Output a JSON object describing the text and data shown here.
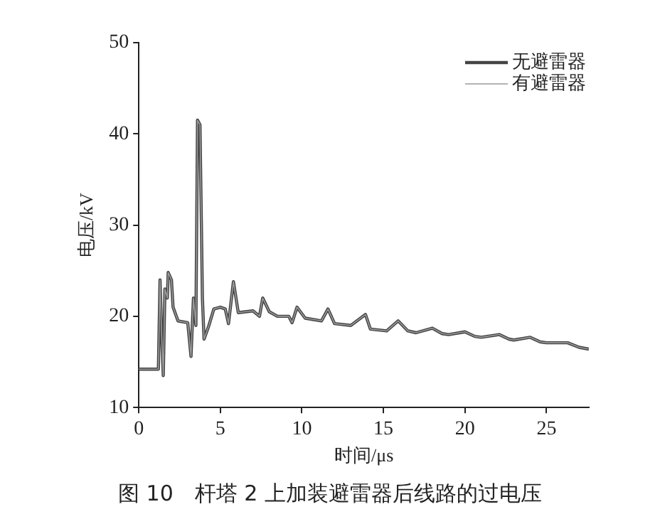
{
  "chart_data": {
    "type": "line",
    "title": "图 10　杆塔 2 上加装避雷器后线路的过电压",
    "xlabel": "时间/μs",
    "ylabel": "电压/kV",
    "x": [
      0,
      1.2,
      1.3,
      1.4,
      1.5,
      1.6,
      1.75,
      1.8,
      2.0,
      2.1,
      2.4,
      3.0,
      3.2,
      3.35,
      3.5,
      3.6,
      3.75,
      3.9,
      4.0,
      4.3,
      4.6,
      5.0,
      5.3,
      5.5,
      5.8,
      6.1,
      7.0,
      7.4,
      7.6,
      8.0,
      8.5,
      9.2,
      9.4,
      9.7,
      10.2,
      11.2,
      11.6,
      12.0,
      13.0,
      13.9,
      14.2,
      15.2,
      15.9,
      16.5,
      17.0,
      18.0,
      18.6,
      19.0,
      20.0,
      20.6,
      21.0,
      22.1,
      22.7,
      23.0,
      24.0,
      24.6,
      25.0,
      26.3,
      27.0,
      27.6
    ],
    "series": [
      {
        "name": "无避雷器",
        "color": "#444444",
        "values": [
          14.2,
          14.2,
          24,
          18,
          13.5,
          23,
          22,
          24.8,
          24,
          21,
          19.5,
          19.3,
          15.6,
          22,
          19,
          41.5,
          41,
          22,
          17.5,
          19,
          20.8,
          21,
          20.8,
          19.2,
          23.8,
          20.4,
          20.6,
          20,
          22,
          20.5,
          20,
          20,
          19.3,
          21,
          19.8,
          19.5,
          20.8,
          19.2,
          19,
          20.2,
          18.6,
          18.4,
          19.5,
          18.4,
          18.2,
          18.7,
          18.1,
          18,
          18.3,
          17.8,
          17.7,
          18,
          17.5,
          17.4,
          17.7,
          17.2,
          17.1,
          17.1,
          16.6,
          16.4
        ]
      },
      {
        "name": "有避雷器",
        "color": "#9a9a9a",
        "values": [
          14.2,
          14.2,
          24,
          18,
          13.5,
          23,
          22,
          24.8,
          24,
          21,
          19.5,
          19.3,
          15.6,
          22,
          19,
          41.5,
          41,
          22,
          17.5,
          19,
          20.8,
          21,
          20.8,
          19.2,
          23.8,
          20.4,
          20.6,
          20,
          22,
          20.5,
          20,
          20,
          19.3,
          21,
          19.8,
          19.5,
          20.8,
          19.2,
          19,
          20.2,
          18.6,
          18.4,
          19.5,
          18.4,
          18.2,
          18.7,
          18.1,
          18,
          18.3,
          17.8,
          17.7,
          18,
          17.5,
          17.4,
          17.7,
          17.2,
          17.1,
          17.1,
          16.6,
          16.4
        ]
      }
    ],
    "xlim": [
      0,
      27.6
    ],
    "xticks": [
      0,
      5,
      10,
      15,
      20,
      25
    ],
    "ylim": [
      10,
      50
    ],
    "yticks": [
      10,
      20,
      30,
      40,
      50
    ],
    "grid": false,
    "legend": "top right",
    "marker": "none",
    "line_style": "solid"
  }
}
